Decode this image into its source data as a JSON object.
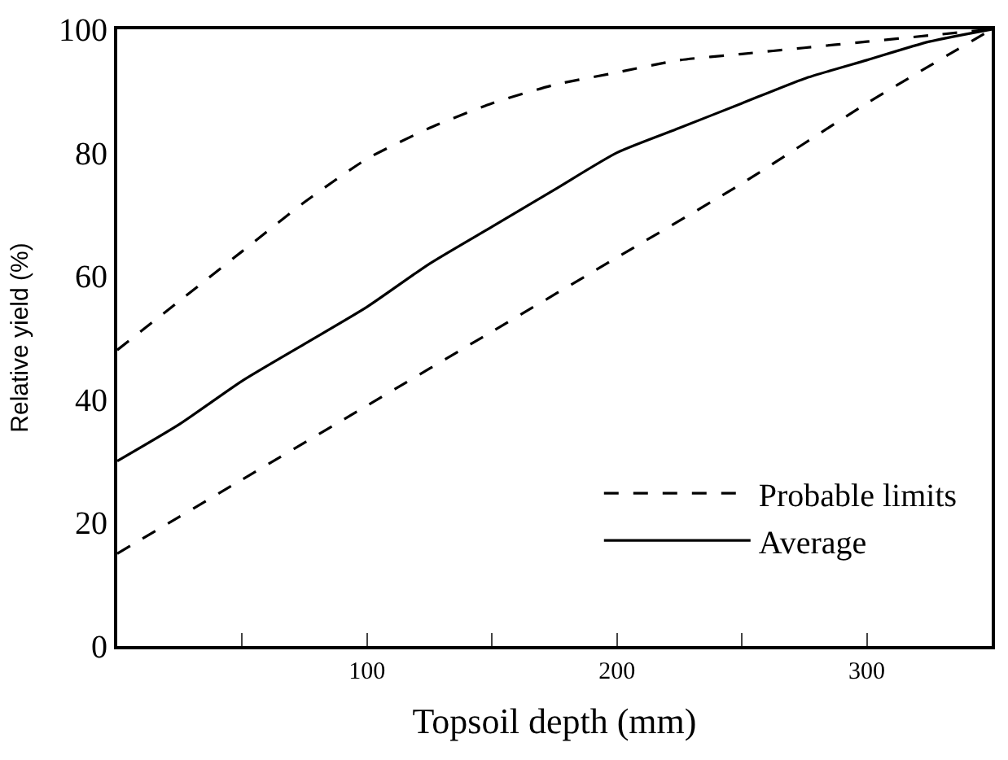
{
  "chart_data": {
    "type": "line",
    "xlabel": "Topsoil depth (mm)",
    "ylabel": "Relative yield (%)",
    "xlim": [
      0,
      350
    ],
    "ylim": [
      0,
      100
    ],
    "xticks": [
      {
        "value": 50,
        "label": null
      },
      100,
      {
        "value": 150,
        "label": null
      },
      200,
      {
        "value": 250,
        "label": null
      },
      300
    ],
    "yticks": [
      0,
      20,
      40,
      60,
      80,
      100
    ],
    "legend": "bottom right",
    "marker": "none",
    "series": [
      {
        "name": "Probable limits",
        "color": "#000000",
        "line_style": "dashed",
        "x": [
          0,
          25,
          50,
          75,
          100,
          125,
          150,
          175,
          200,
          225,
          250,
          275,
          300,
          325,
          350
        ],
        "values": [
          48,
          56,
          64,
          72,
          79,
          84,
          88,
          91,
          93,
          95,
          96,
          97,
          98,
          99,
          100
        ]
      },
      {
        "name": "Average",
        "color": "#000000",
        "line_style": "solid",
        "x": [
          0,
          25,
          50,
          75,
          100,
          125,
          150,
          175,
          200,
          225,
          250,
          275,
          300,
          325,
          350
        ],
        "values": [
          30,
          36,
          43,
          49,
          55,
          62,
          68,
          74,
          80,
          84,
          88,
          92,
          95,
          98,
          100
        ]
      },
      {
        "color": "#000000",
        "line_style": "dashed",
        "x": [
          0,
          50,
          100,
          150,
          200,
          250,
          300,
          350
        ],
        "values": [
          15,
          27,
          39,
          51,
          63,
          75,
          88,
          100
        ]
      }
    ]
  }
}
